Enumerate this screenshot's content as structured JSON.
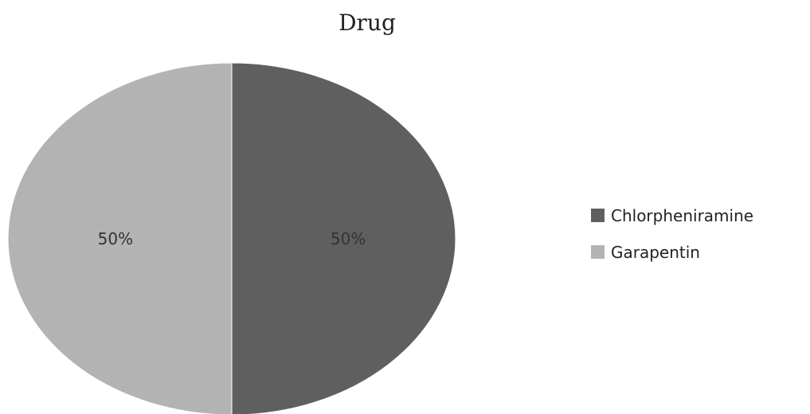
{
  "chart_data": {
    "type": "pie",
    "title": "Drug",
    "categories": [
      "Chlorpheniramine",
      "Garapentin"
    ],
    "values": [
      50,
      50
    ],
    "data_labels": [
      "50%",
      "50%"
    ],
    "colors": [
      "#5f5f5f",
      "#b3b3b3"
    ],
    "legend_placement": "right",
    "start_angle_deg": 0,
    "direction": "clockwise"
  }
}
